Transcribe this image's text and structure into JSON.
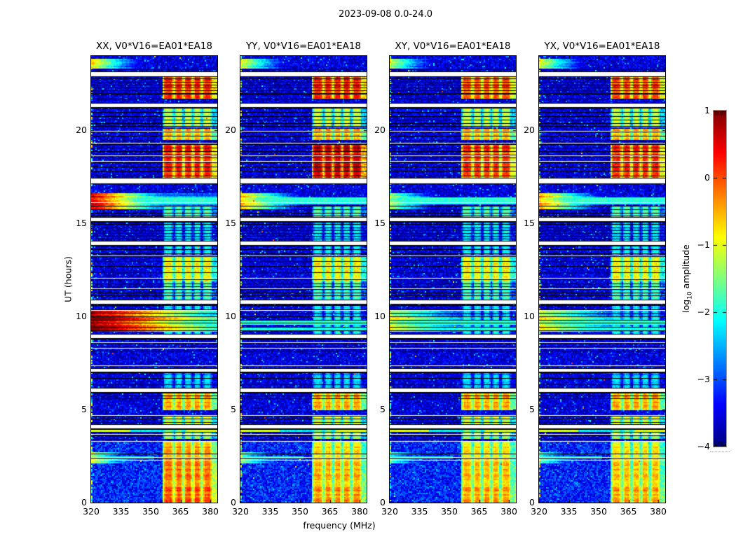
{
  "chart_data": {
    "type": "heatmap",
    "title": "2023-09-08 0.0-24.0",
    "xlabel": "frequency (MHz)",
    "ylabel": "UT (hours)",
    "xlim": [
      320,
      383.5
    ],
    "ylim": [
      0,
      24
    ],
    "xticks": [
      "320",
      "335",
      "350",
      "365",
      "380"
    ],
    "yticks": [
      "0",
      "5",
      "10",
      "15",
      "20"
    ],
    "colormap": "jet",
    "colorbar": {
      "vmin": -4,
      "vmax": 1,
      "ticks": [
        "1",
        "0",
        "−1",
        "−2",
        "−3",
        "−4"
      ],
      "label_prefix": "log",
      "label_sub": "10",
      "label_suffix": " amplitude"
    },
    "panels": [
      {
        "id": "XX",
        "title": "XX, V0*V16=EA01*EA18",
        "seed": 11,
        "v_hi": 0.3,
        "v_mid": 0.25,
        "v_bot": -0.45,
        "bursts_v": [
          -0.55,
          0.7,
          1.05,
          -1.1
        ]
      },
      {
        "id": "YY",
        "title": "YY, V0*V16=EA01*EA18",
        "seed": 22,
        "v_hi": 0.35,
        "v_mid": 0.6,
        "v_bot": -0.75,
        "bursts_v": [
          -0.8,
          -0.5,
          -2.8,
          -1.5
        ]
      },
      {
        "id": "XY",
        "title": "XY, V0*V16=EA01*EA18",
        "seed": 33,
        "v_hi": 0.1,
        "v_mid": 0.12,
        "v_bot": -0.8,
        "bursts_v": [
          -1.0,
          -1.3,
          -1.1,
          -1.8
        ]
      },
      {
        "id": "YX",
        "title": "YX, V0*V16=EA01*EA18",
        "seed": 44,
        "v_hi": 0.15,
        "v_mid": 0.18,
        "v_bot": -0.85,
        "bursts_v": [
          -0.85,
          -0.35,
          -0.95,
          -1.7
        ]
      }
    ],
    "features": {
      "rfi_columns_mhz": [
        [
          356.4,
          361.3
        ],
        [
          362.3,
          366.0
        ],
        [
          367.1,
          370.7
        ],
        [
          371.7,
          375.2
        ],
        [
          376.3,
          380.8
        ]
      ],
      "rfi_intervals": [
        {
          "ut": [
            21.68,
            22.92
          ],
          "v": 0.3,
          "pp": "hi"
        },
        {
          "ut": [
            20.18,
            21.2
          ],
          "v": -1.2
        },
        {
          "ut": [
            19.5,
            20.12
          ],
          "v": -0.5
        },
        {
          "ut": [
            17.45,
            19.28
          ],
          "v": 0.25,
          "pp": "mid"
        },
        {
          "ut": [
            15.3,
            15.95
          ],
          "v": -1.7
        },
        {
          "ut": [
            13.3,
            15.15
          ],
          "v": -2.2
        },
        {
          "ut": [
            11.9,
            13.25
          ],
          "v": -0.9
        },
        {
          "ut": [
            10.9,
            11.85
          ],
          "v": -1.8
        },
        {
          "ut": [
            9.05,
            10.6
          ],
          "v": -2.2
        },
        {
          "ut": [
            6.15,
            7.0
          ],
          "v": -2.4
        },
        {
          "ut": [
            4.95,
            5.9
          ],
          "v": -0.45
        },
        {
          "ut": [
            4.18,
            4.68
          ],
          "v": -1.1
        },
        {
          "ut": [
            3.4,
            3.96
          ],
          "v": -1.4
        },
        {
          "ut": [
            0.0,
            3.3
          ],
          "v": -0.8,
          "pp": "bottom",
          "grad": 0.15
        }
      ],
      "white_gaps_ut": [
        [
          22.92,
          23.14
        ],
        [
          21.24,
          21.44
        ],
        [
          17.14,
          17.42
        ],
        [
          15.14,
          15.32
        ],
        [
          13.84,
          14.04
        ],
        [
          10.66,
          10.86
        ],
        [
          8.84,
          9.02
        ],
        [
          7.02,
          7.18
        ],
        [
          5.94,
          6.14
        ],
        [
          3.98,
          4.16
        ]
      ],
      "white_lines_ut": [
        19.98,
        19.32,
        18.66,
        18.34,
        16.14,
        13.28,
        12.08,
        11.52,
        10.34,
        8.6,
        8.32,
        7.36,
        4.72,
        3.68,
        3.3,
        2.46,
        2.3
      ],
      "black_line_bands": [
        [
          22.0,
          22.9,
          3
        ],
        [
          21.5,
          21.95,
          5
        ],
        [
          20.18,
          21.2,
          4
        ],
        [
          19.4,
          19.95,
          6
        ],
        [
          18.35,
          19.25,
          4
        ],
        [
          17.45,
          18.3,
          5
        ],
        [
          15.35,
          15.95,
          4
        ],
        [
          14.05,
          15.1,
          3
        ],
        [
          13.3,
          13.8,
          4
        ],
        [
          12.15,
          13.25,
          7
        ],
        [
          10.9,
          12.0,
          4
        ],
        [
          9.05,
          10.6,
          4
        ],
        [
          8.05,
          8.8,
          5
        ],
        [
          6.15,
          7.0,
          7
        ],
        [
          5.45,
          5.92,
          3
        ],
        [
          4.18,
          4.68,
          4
        ],
        [
          3.4,
          3.96,
          4
        ],
        [
          2.28,
          2.62,
          4
        ],
        [
          23.16,
          23.3,
          4
        ]
      ],
      "bursts": [
        {
          "ut": [
            23.35,
            23.82
          ],
          "fade": 0.12
        },
        {
          "ut": [
            15.75,
            16.6
          ],
          "fade": 0.1
        },
        {
          "ut": [
            9.15,
            10.4
          ],
          "fade": 0.05
        },
        {
          "ut": [
            2.1,
            2.7
          ],
          "fade": 0.12
        }
      ],
      "bright_rows": [
        {
          "ut": 16.28,
          "v": -1.9
        },
        {
          "ut": 16.08,
          "v": -2.0
        },
        {
          "ut": 9.66,
          "v": -1.9
        },
        {
          "ut": 9.34,
          "v": -2.05
        },
        {
          "ut": 3.88,
          "v": -1.05,
          "dip": true
        },
        {
          "ut": 2.4,
          "v": -2.1,
          "fmax": 352
        }
      ]
    }
  }
}
